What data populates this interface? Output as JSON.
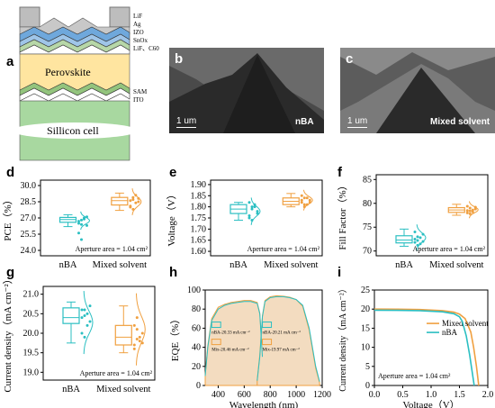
{
  "panel_labels": {
    "a": "a",
    "b": "b",
    "c": "c",
    "d": "d",
    "e": "e",
    "f": "f",
    "g": "g",
    "h": "h",
    "i": "i"
  },
  "device_layers": [
    "LiF",
    "Ag",
    "IZO",
    "SnOx",
    "LiF、C60",
    "Perovskite",
    "SAM",
    "ITO",
    "Sillicon cell"
  ],
  "sem": {
    "b_tag": "nBA",
    "c_tag": "Mixed solvent",
    "scale_b": "1 um",
    "scale_c": "1 um"
  },
  "aperture_text": "Aperture area = 1.04 cm²",
  "colors": {
    "nba": "#2bbfc2",
    "mixed": "#f0a040",
    "eqe_fill": "#f3dcc0"
  },
  "chart_data": [
    {
      "type": "box",
      "panel": "d",
      "ylabel": "PCE（%）",
      "ylim": [
        23.5,
        30.5
      ],
      "yticks": [
        "24.0",
        "25.5",
        "27.0",
        "28.5",
        "30.0"
      ],
      "categories": [
        "nBA",
        "Mixed solvent"
      ],
      "series": [
        {
          "name": "nBA",
          "q1": 26.6,
          "median": 26.85,
          "q3": 27.05,
          "min": 26.2,
          "max": 27.3,
          "points": [
            26.5,
            26.8,
            27.0,
            26.3,
            25.6,
            25.0,
            26.9,
            27.1,
            26.7,
            26.4
          ]
        },
        {
          "name": "Mixed solvent",
          "q1": 28.2,
          "median": 28.6,
          "q3": 28.9,
          "min": 27.7,
          "max": 29.3,
          "points": [
            28.6,
            28.9,
            28.4,
            28.8,
            28.1,
            27.8,
            29.1,
            28.5,
            28.0,
            28.7
          ]
        }
      ]
    },
    {
      "type": "box",
      "panel": "e",
      "ylabel": "Voltage（V）",
      "ylim": [
        1.58,
        1.92
      ],
      "yticks": [
        "1.60",
        "1.65",
        "1.70",
        "1.75",
        "1.80",
        "1.85",
        "1.90"
      ],
      "categories": [
        "nBA",
        "Mixed solvent"
      ],
      "series": [
        {
          "name": "nBA",
          "q1": 1.77,
          "median": 1.79,
          "q3": 1.81,
          "min": 1.74,
          "max": 1.82,
          "points": [
            1.76,
            1.79,
            1.8,
            1.77,
            1.82,
            1.74,
            1.81,
            1.78,
            1.75,
            1.8
          ]
        },
        {
          "name": "Mixed solvent",
          "q1": 1.81,
          "median": 1.825,
          "q3": 1.84,
          "min": 1.8,
          "max": 1.86,
          "points": [
            1.82,
            1.84,
            1.81,
            1.83,
            1.85,
            1.8,
            1.84,
            1.82,
            1.83,
            1.81
          ]
        }
      ]
    },
    {
      "type": "box",
      "panel": "f",
      "ylabel": "Fill Factor（%）",
      "ylim": [
        69,
        86
      ],
      "yticks": [
        "70",
        "75",
        "80",
        "85"
      ],
      "categories": [
        "nBA",
        "Mixed solvent"
      ],
      "series": [
        {
          "name": "nBA",
          "q1": 71.7,
          "median": 72.3,
          "q3": 73.2,
          "min": 71.0,
          "max": 74.6,
          "points": [
            72.5,
            73.0,
            71.5,
            72.0,
            74.0,
            71.2,
            72.8,
            73.5,
            71.8,
            72.2
          ]
        },
        {
          "name": "Mixed solvent",
          "q1": 78.1,
          "median": 78.6,
          "q3": 79.1,
          "min": 77.5,
          "max": 79.8,
          "points": [
            78.5,
            79.0,
            78.2,
            78.8,
            79.4,
            77.8,
            78.6,
            79.2,
            78.0,
            78.4
          ]
        }
      ]
    },
    {
      "type": "box",
      "panel": "g",
      "ylabel": "Current density（mA cm⁻²）",
      "ylim": [
        18.8,
        21.2
      ],
      "yticks": [
        "19.0",
        "19.5",
        "20.0",
        "20.5",
        "21.0"
      ],
      "categories": [
        "nBA",
        "Mixed solvent"
      ],
      "series": [
        {
          "name": "nBA",
          "q1": 20.25,
          "median": 20.4,
          "q3": 20.65,
          "min": 19.75,
          "max": 20.8,
          "points": [
            20.4,
            20.6,
            20.2,
            20.7,
            20.0,
            19.9,
            20.5,
            20.3,
            20.6,
            20.45
          ]
        },
        {
          "name": "Mixed solvent",
          "q1": 19.7,
          "median": 19.9,
          "q3": 20.2,
          "min": 19.5,
          "max": 20.7,
          "points": [
            19.6,
            20.1,
            19.8,
            20.0,
            19.7,
            20.4,
            19.9,
            19.75,
            20.2,
            19.85
          ]
        }
      ]
    },
    {
      "type": "area",
      "panel": "h",
      "ylabel": "EQE（%）",
      "xlabel": "Wavelength (nm)",
      "xlim": [
        300,
        1200
      ],
      "ylim": [
        0,
        100
      ],
      "xticks": [
        "400",
        "600",
        "800",
        "1000",
        "1200"
      ],
      "yticks": [
        "0",
        "20",
        "40",
        "60",
        "80",
        "100"
      ],
      "annotations": [
        "nBA-20.33 mA cm⁻²",
        "Mix-20.46 mA cm⁻²",
        "nBA-20.21 mA cm⁻²",
        "Mix-19.97 mA cm⁻²"
      ],
      "series": [
        {
          "name": "nBA top",
          "x": [
            300,
            320,
            350,
            400,
            450,
            500,
            550,
            600,
            650,
            700,
            720,
            740
          ],
          "y": [
            10,
            40,
            68,
            80,
            84,
            86,
            87,
            88,
            88,
            86,
            75,
            30
          ]
        },
        {
          "name": "Mix top",
          "x": [
            300,
            320,
            350,
            400,
            450,
            500,
            550,
            600,
            650,
            700,
            720,
            740
          ],
          "y": [
            11,
            42,
            70,
            82,
            85,
            87,
            88,
            89,
            89,
            87,
            76,
            32
          ]
        },
        {
          "name": "nBA bottom",
          "x": [
            700,
            720,
            740,
            760,
            800,
            850,
            900,
            950,
            1000,
            1050,
            1100,
            1150,
            1180
          ],
          "y": [
            5,
            30,
            72,
            88,
            92,
            93,
            93,
            92,
            90,
            84,
            60,
            20,
            4
          ]
        },
        {
          "name": "Mix bottom",
          "x": [
            700,
            720,
            740,
            760,
            800,
            850,
            900,
            950,
            1000,
            1050,
            1100,
            1150,
            1180
          ],
          "y": [
            6,
            32,
            73,
            89,
            93,
            94,
            93.5,
            92.5,
            90,
            83,
            58,
            18,
            3
          ]
        }
      ]
    },
    {
      "type": "line",
      "panel": "i",
      "ylabel": "Current density（mA cm⁻²）",
      "xlabel": "Voltage（V）",
      "xlim": [
        0,
        2.0
      ],
      "ylim": [
        0,
        25
      ],
      "xticks": [
        "0.0",
        "0.5",
        "1.0",
        "1.5",
        "2.0"
      ],
      "yticks": [
        "0",
        "5",
        "10",
        "15",
        "20",
        "25"
      ],
      "aperture": "Aperture area = 1.04 cm²",
      "series": [
        {
          "name": "Mixed solvent",
          "x": [
            0,
            0.4,
            0.8,
            1.2,
            1.4,
            1.5,
            1.6,
            1.7,
            1.75,
            1.8,
            1.84
          ],
          "y": [
            20.0,
            19.98,
            19.9,
            19.6,
            19.2,
            18.7,
            17.5,
            14.0,
            10.0,
            5.0,
            0
          ]
        },
        {
          "name": "nBA",
          "x": [
            0,
            0.4,
            0.8,
            1.2,
            1.4,
            1.5,
            1.55,
            1.62,
            1.68,
            1.72,
            1.76
          ],
          "y": [
            19.7,
            19.68,
            19.6,
            19.3,
            18.8,
            18.0,
            16.8,
            13.0,
            8.0,
            4.0,
            0
          ]
        }
      ]
    }
  ]
}
